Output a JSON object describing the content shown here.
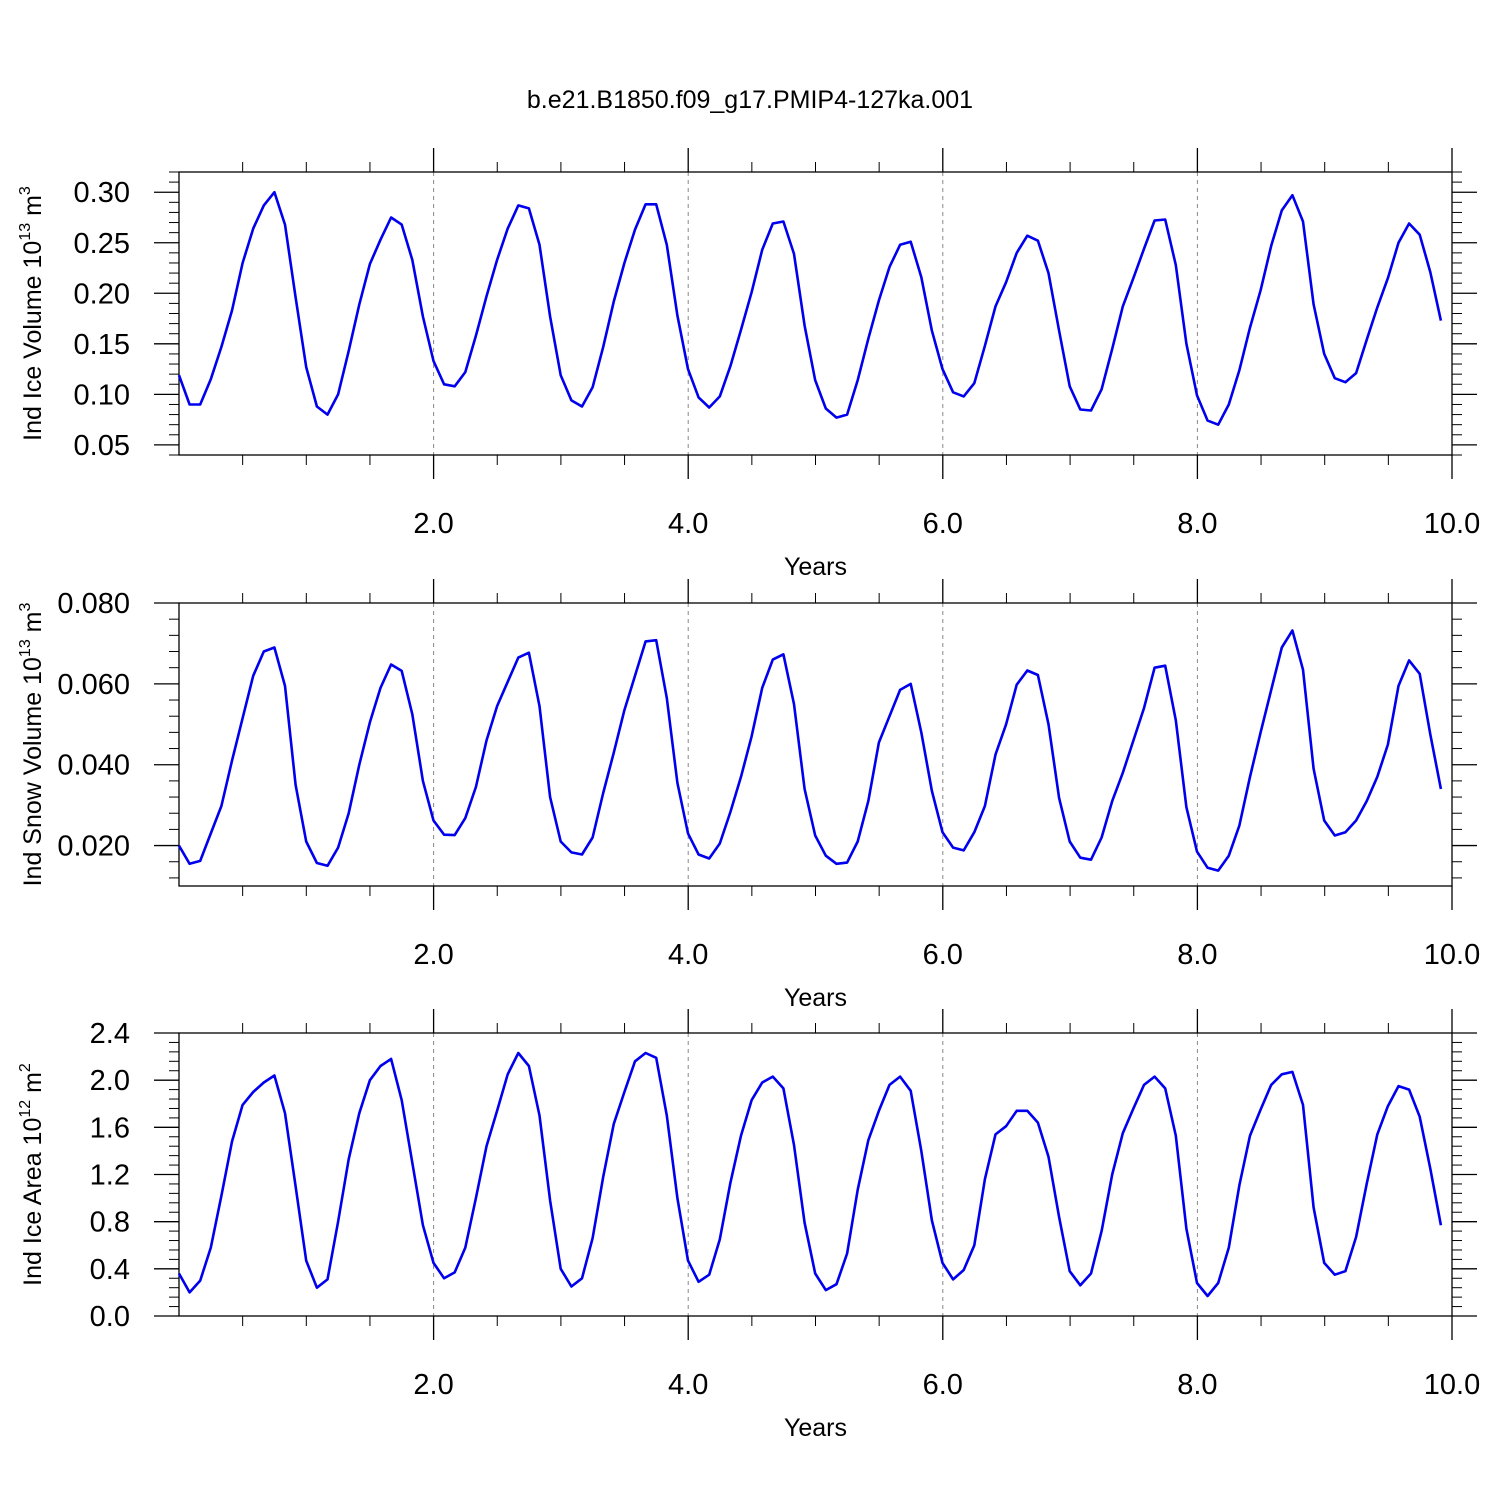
{
  "title": "b.e21.B1850.f09_g17.PMIP4-127ka.001",
  "colors": {
    "line": "#0000ee",
    "axis": "#000000",
    "grid": "#888888"
  },
  "chart_data": [
    {
      "type": "line",
      "title": "",
      "xlabel": "Years",
      "ylabel_main": "Ind Ice Volume 10",
      "ylabel_exp": "13",
      "ylabel_unit": " m",
      "ylabel_unit_exp": "3",
      "xlim": [
        0.0,
        10.0
      ],
      "ylim": [
        0.04,
        0.32
      ],
      "xticks": [
        2.0,
        4.0,
        6.0,
        8.0,
        10.0
      ],
      "xtick_labels": [
        "2.0",
        "4.0",
        "6.0",
        "8.0",
        "10.0"
      ],
      "yticks": [
        0.05,
        0.1,
        0.15,
        0.2,
        0.25,
        0.3
      ],
      "ytick_labels": [
        "0.05",
        "0.10",
        "0.15",
        "0.20",
        "0.25",
        "0.30"
      ],
      "grid": "vertical dashed at major x ticks",
      "x_step": 0.0833,
      "series": [
        {
          "values": [
            0.119,
            0.09,
            0.09,
            0.115,
            0.147,
            0.183,
            0.23,
            0.264,
            0.287,
            0.3,
            0.268,
            0.196,
            0.127,
            0.088,
            0.08,
            0.1,
            0.143,
            0.189,
            0.229,
            0.253,
            0.275,
            0.268,
            0.233,
            0.177,
            0.133,
            0.11,
            0.108,
            0.122,
            0.158,
            0.197,
            0.233,
            0.264,
            0.287,
            0.284,
            0.248,
            0.177,
            0.119,
            0.094,
            0.088,
            0.107,
            0.147,
            0.192,
            0.23,
            0.263,
            0.288,
            0.288,
            0.248,
            0.178,
            0.125,
            0.097,
            0.087,
            0.098,
            0.128,
            0.164,
            0.201,
            0.243,
            0.269,
            0.271,
            0.239,
            0.168,
            0.114,
            0.086,
            0.077,
            0.08,
            0.114,
            0.155,
            0.193,
            0.226,
            0.248,
            0.251,
            0.216,
            0.163,
            0.125,
            0.102,
            0.098,
            0.111,
            0.148,
            0.187,
            0.211,
            0.24,
            0.257,
            0.252,
            0.22,
            0.163,
            0.108,
            0.085,
            0.084,
            0.105,
            0.145,
            0.187,
            0.215,
            0.244,
            0.272,
            0.273,
            0.228,
            0.15,
            0.099,
            0.074,
            0.07,
            0.09,
            0.124,
            0.166,
            0.203,
            0.247,
            0.282,
            0.297,
            0.271,
            0.189,
            0.14,
            0.116,
            0.112,
            0.121,
            0.154,
            0.186,
            0.215,
            0.25,
            0.269,
            0.258,
            0.221,
            0.173
          ]
        }
      ]
    },
    {
      "type": "line",
      "title": "",
      "xlabel": "Years",
      "ylabel_main": "Ind Snow Volume 10",
      "ylabel_exp": "13",
      "ylabel_unit": " m",
      "ylabel_unit_exp": "3",
      "xlim": [
        0.0,
        10.0
      ],
      "ylim": [
        0.01,
        0.08
      ],
      "xticks": [
        2.0,
        4.0,
        6.0,
        8.0,
        10.0
      ],
      "xtick_labels": [
        "2.0",
        "4.0",
        "6.0",
        "8.0",
        "10.0"
      ],
      "yticks": [
        0.02,
        0.04,
        0.06,
        0.08
      ],
      "ytick_labels": [
        "0.020",
        "0.040",
        "0.060",
        "0.080"
      ],
      "grid": "vertical dashed at major x ticks",
      "x_step": 0.0833,
      "series": [
        {
          "values": [
            0.02,
            0.0155,
            0.0162,
            0.023,
            0.0298,
            0.041,
            0.0515,
            0.062,
            0.068,
            0.069,
            0.0595,
            0.035,
            0.021,
            0.0157,
            0.015,
            0.0195,
            0.028,
            0.04,
            0.0505,
            0.059,
            0.0648,
            0.0632,
            0.0525,
            0.036,
            0.0262,
            0.0227,
            0.0226,
            0.0268,
            0.0345,
            0.046,
            0.0545,
            0.0605,
            0.0665,
            0.0677,
            0.0545,
            0.032,
            0.021,
            0.0183,
            0.0178,
            0.022,
            0.033,
            0.043,
            0.0535,
            0.062,
            0.0705,
            0.0708,
            0.0565,
            0.0355,
            0.023,
            0.0178,
            0.0168,
            0.0205,
            0.0283,
            0.037,
            0.047,
            0.059,
            0.066,
            0.0673,
            0.055,
            0.034,
            0.0225,
            0.0175,
            0.0155,
            0.0158,
            0.021,
            0.031,
            0.0455,
            0.052,
            0.0585,
            0.06,
            0.048,
            0.0335,
            0.0233,
            0.0195,
            0.0188,
            0.0233,
            0.0298,
            0.0425,
            0.05,
            0.0598,
            0.0633,
            0.0622,
            0.05,
            0.0318,
            0.021,
            0.017,
            0.0165,
            0.022,
            0.031,
            0.038,
            0.046,
            0.054,
            0.064,
            0.0645,
            0.051,
            0.0295,
            0.0185,
            0.0145,
            0.0138,
            0.0175,
            0.025,
            0.037,
            0.048,
            0.0585,
            0.069,
            0.0732,
            0.0635,
            0.039,
            0.0262,
            0.0225,
            0.0233,
            0.0262,
            0.031,
            0.037,
            0.045,
            0.0595,
            0.0658,
            0.0625,
            0.0475,
            0.034
          ]
        }
      ]
    },
    {
      "type": "line",
      "title": "",
      "xlabel": "Years",
      "ylabel_main": "Ind Ice Area 10",
      "ylabel_exp": "12",
      "ylabel_unit": " m",
      "ylabel_unit_exp": "2",
      "xlim": [
        0.0,
        10.0
      ],
      "ylim": [
        0.0,
        2.4
      ],
      "xticks": [
        2.0,
        4.0,
        6.0,
        8.0,
        10.0
      ],
      "xtick_labels": [
        "2.0",
        "4.0",
        "6.0",
        "8.0",
        "10.0"
      ],
      "yticks": [
        0.0,
        0.4,
        0.8,
        1.2,
        1.6,
        2.0,
        2.4
      ],
      "ytick_labels": [
        "0.0",
        "0.4",
        "0.8",
        "1.2",
        "1.6",
        "2.0",
        "2.4"
      ],
      "grid": "vertical dashed at major x ticks",
      "x_step": 0.0833,
      "series": [
        {
          "values": [
            0.36,
            0.2,
            0.3,
            0.58,
            1.02,
            1.48,
            1.79,
            1.9,
            1.98,
            2.04,
            1.72,
            1.1,
            0.47,
            0.24,
            0.31,
            0.8,
            1.33,
            1.72,
            2.0,
            2.12,
            2.18,
            1.83,
            1.3,
            0.77,
            0.45,
            0.32,
            0.37,
            0.58,
            1.0,
            1.44,
            1.74,
            2.05,
            2.23,
            2.12,
            1.7,
            0.98,
            0.4,
            0.25,
            0.32,
            0.66,
            1.18,
            1.63,
            1.9,
            2.16,
            2.23,
            2.19,
            1.7,
            1.0,
            0.47,
            0.29,
            0.35,
            0.65,
            1.13,
            1.53,
            1.83,
            1.98,
            2.03,
            1.93,
            1.45,
            0.79,
            0.36,
            0.22,
            0.27,
            0.53,
            1.07,
            1.49,
            1.74,
            1.96,
            2.03,
            1.91,
            1.4,
            0.81,
            0.45,
            0.31,
            0.39,
            0.6,
            1.16,
            1.54,
            1.61,
            1.74,
            1.74,
            1.64,
            1.35,
            0.84,
            0.38,
            0.26,
            0.36,
            0.72,
            1.2,
            1.55,
            1.76,
            1.96,
            2.03,
            1.93,
            1.53,
            0.74,
            0.28,
            0.17,
            0.28,
            0.58,
            1.11,
            1.53,
            1.75,
            1.96,
            2.05,
            2.07,
            1.79,
            0.92,
            0.45,
            0.35,
            0.38,
            0.67,
            1.12,
            1.54,
            1.78,
            1.95,
            1.92,
            1.69,
            1.25,
            0.77
          ]
        }
      ]
    }
  ]
}
